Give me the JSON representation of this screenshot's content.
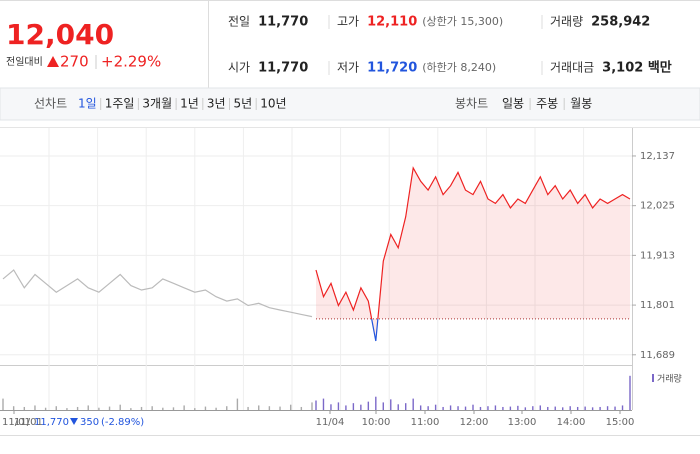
{
  "quote": {
    "price": "12,040",
    "change_label": "전일대비",
    "change": "270",
    "change_pct": "+2.29%"
  },
  "stats": [
    {
      "label": "전일",
      "value": "11,770"
    },
    {
      "label": "고가",
      "value": "12,110",
      "note": "(상한가 15,300)"
    },
    {
      "label": "거래량",
      "value": "258,942"
    },
    {
      "label": "시가",
      "value": "11,770"
    },
    {
      "label": "저가",
      "value": "11,720",
      "note": "(하한가 8,240)"
    },
    {
      "label": "거래대금",
      "value": "3,102 백만"
    }
  ],
  "tabs": {
    "line_label": "선차트",
    "periods": [
      "1일",
      "1주일",
      "3개월",
      "1년",
      "3년",
      "5년",
      "10년"
    ],
    "active": 0,
    "candle_label": "봉차트",
    "candles": [
      "일봉",
      "주봉",
      "월봉"
    ]
  },
  "chart_data": {
    "type": "line",
    "ylim": [
      11666,
      12200
    ],
    "yticks": [
      {
        "value": 11689,
        "label": "11,689"
      },
      {
        "value": 11801,
        "label": "11,801"
      },
      {
        "value": 11913,
        "label": "11,913"
      },
      {
        "value": 12025,
        "label": "12,025"
      },
      {
        "value": 12137,
        "label": "12,137"
      }
    ],
    "xticks": [
      "11/01",
      "11/04",
      "10:00",
      "11:00",
      "12:00",
      "13:00",
      "14:00",
      "15:00"
    ],
    "reference": 11770,
    "grid": true,
    "volume_label": "거래량",
    "series": [
      {
        "name": "11/01",
        "color": "#bbbbbb",
        "volume_color": "#aaaaaa",
        "values": [
          11860,
          11880,
          11840,
          11870,
          11850,
          11830,
          11845,
          11860,
          11840,
          11830,
          11850,
          11870,
          11845,
          11835,
          11840,
          11860,
          11850,
          11840,
          11830,
          11835,
          11820,
          11810,
          11815,
          11800,
          11805,
          11795,
          11790,
          11785,
          11780,
          11775
        ],
        "volume": [
          30,
          10,
          8,
          12,
          6,
          10,
          5,
          8,
          12,
          6,
          9,
          14,
          5,
          8,
          10,
          6,
          7,
          12,
          5,
          9,
          6,
          10,
          30,
          8,
          12,
          10,
          9,
          14,
          8,
          20
        ]
      },
      {
        "name": "11/04",
        "color": "#ee2222",
        "low_color": "#2255dd",
        "volume_color": "#7b68c8",
        "values": [
          11880,
          11820,
          11850,
          11800,
          11830,
          11790,
          11840,
          11810,
          11720,
          11900,
          11960,
          11930,
          12000,
          12110,
          12080,
          12060,
          12090,
          12050,
          12070,
          12100,
          12060,
          12050,
          12080,
          12040,
          12030,
          12050,
          12020,
          12040,
          12030,
          12060,
          12090,
          12050,
          12070,
          12040,
          12060,
          12030,
          12050,
          12020,
          12040,
          12030,
          12040,
          12050,
          12040
        ],
        "volume": [
          25,
          30,
          15,
          20,
          12,
          18,
          14,
          22,
          35,
          20,
          28,
          15,
          18,
          30,
          12,
          10,
          14,
          8,
          12,
          10,
          9,
          14,
          8,
          10,
          12,
          8,
          9,
          11,
          7,
          10,
          12,
          8,
          9,
          7,
          10,
          8,
          9,
          7,
          8,
          10,
          9,
          12,
          90
        ]
      }
    ]
  },
  "footer": {
    "date": "11/01",
    "close": "11,770",
    "change": "350",
    "change_pct": "(-2.89%)"
  }
}
